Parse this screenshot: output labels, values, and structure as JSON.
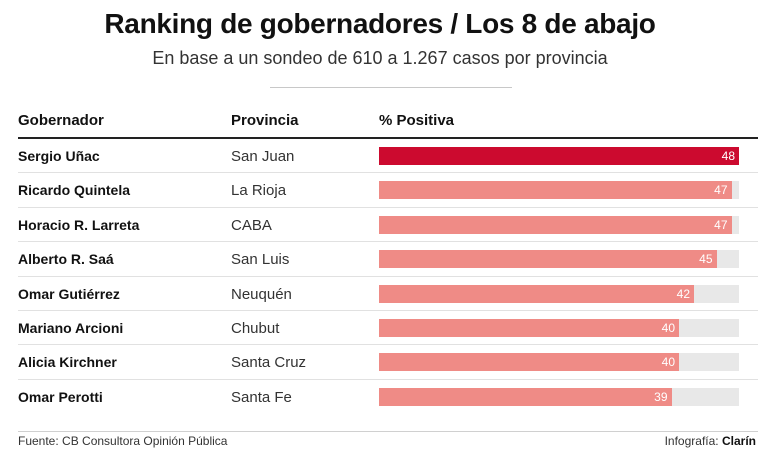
{
  "title": "Ranking de gobernadores / Los 8 de abajo",
  "subtitle": "En base a un sondeo de 610 a 1.267 casos por provincia",
  "columns": {
    "name": "Gobernador",
    "province": "Provincia",
    "value": "% Positiva"
  },
  "colors": {
    "highlight": "#cc0a2f",
    "bar": "#ef8b86",
    "track": "#e8e8e8"
  },
  "chart_data": {
    "type": "bar",
    "title": "Ranking de gobernadores / Los 8 de abajo",
    "subtitle": "En base a un sondeo de 610 a 1.267 casos por provincia",
    "xlabel": "% Positiva",
    "ylabel": "Gobernador",
    "xlim": [
      0,
      48
    ],
    "categories": [
      "Sergio Uñac",
      "Ricardo Quintela",
      "Horacio R. Larreta",
      "Alberto R. Saá",
      "Omar Gutiérrez",
      "Mariano Arcioni",
      "Alicia Kirchner",
      "Omar Perotti"
    ],
    "provinces": [
      "San Juan",
      "La Rioja",
      "CABA",
      "San Luis",
      "Neuquén",
      "Chubut",
      "Santa Cruz",
      "Santa Fe"
    ],
    "values": [
      48,
      47,
      47,
      45,
      42,
      40,
      40,
      39
    ]
  },
  "footer": {
    "source": "Fuente: CB Consultora Opinión Pública",
    "credit_label": "Infografía:",
    "credit_brand": "Clarín"
  }
}
